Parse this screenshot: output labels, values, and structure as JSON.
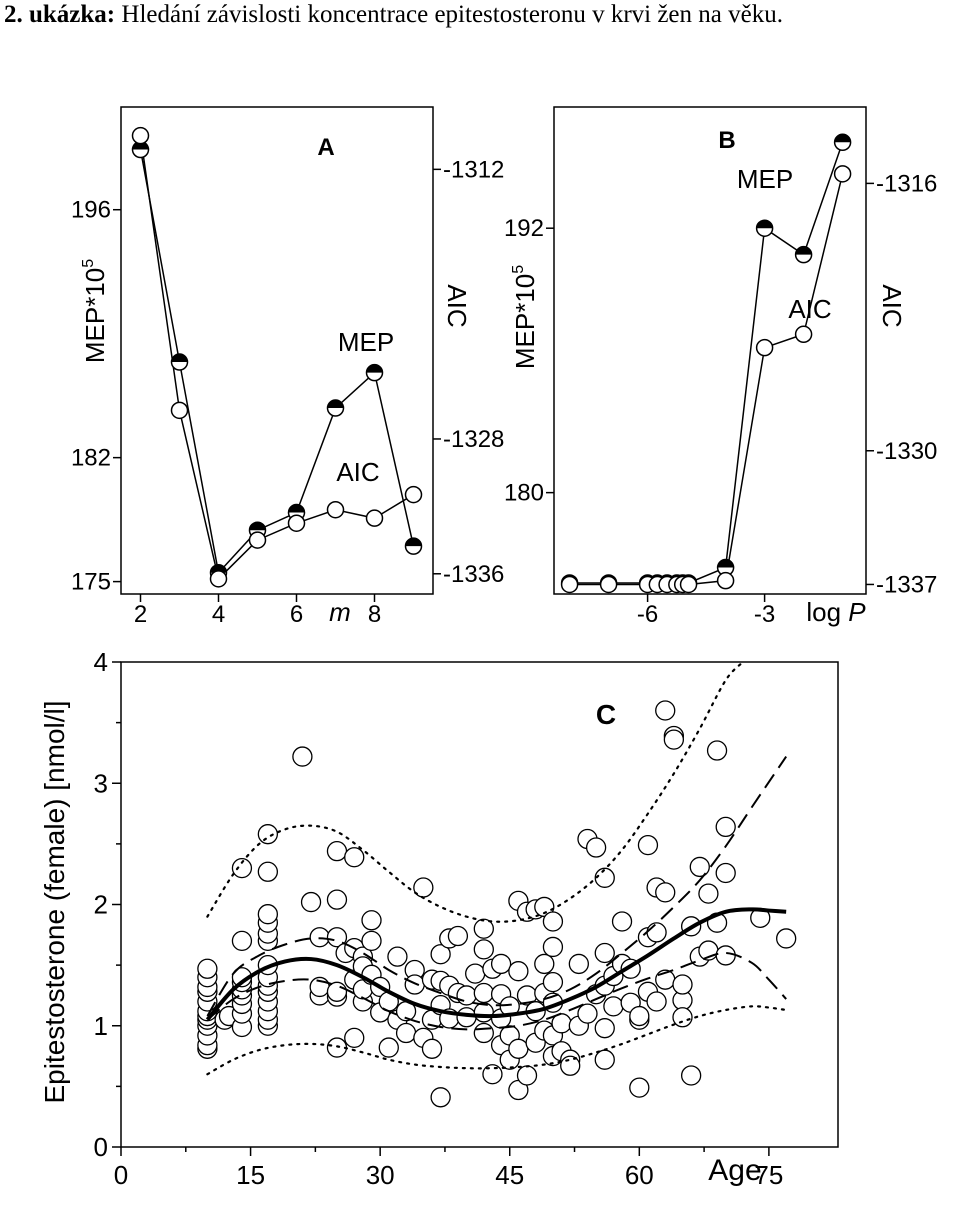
{
  "header": {
    "number": "2. ukázka:",
    "text": "Hledání závislosti koncentrace epitestosteronu v krvi žen na věku."
  },
  "colors": {
    "ink": "#000000",
    "background": "#ffffff",
    "marker_fill": "#ffffff"
  },
  "chart_data": [
    {
      "panel": "A",
      "type": "line",
      "title": "A",
      "xlabel_prefix": "",
      "xlabel": "m",
      "ylabel": "MEP*10",
      "ylabel_exponent": "5",
      "y2label": "AIC",
      "x_ticks": [
        2,
        4,
        6,
        8
      ],
      "x_tick_labels": [
        "2",
        "4",
        "6",
        "8"
      ],
      "y_ticks": [
        175,
        182,
        196
      ],
      "y_tick_labels": [
        "175",
        "182",
        "196"
      ],
      "y2_ticks": [
        -1312,
        -1328,
        -1336
      ],
      "y2_tick_labels": [
        "-1312",
        "-1328",
        "-1336"
      ],
      "xlim": [
        1.5,
        9.5
      ],
      "ylim": [
        174.3,
        201.8
      ],
      "y2lim": [
        -1337.2,
        -1308.3
      ],
      "series": [
        {
          "name": "MEP",
          "marker": "half-filled circle",
          "x": [
            2,
            3,
            4,
            5,
            6,
            7,
            8,
            9
          ],
          "y": [
            199.4,
            187.4,
            175.5,
            177.9,
            178.9,
            184.8,
            186.8,
            177.0
          ]
        },
        {
          "name": "AIC",
          "marker": "open circle",
          "axis": "right",
          "x": [
            2,
            3,
            4,
            5,
            6,
            7,
            8,
            9
          ],
          "y": [
            -1310.0,
            -1326.3,
            -1336.3,
            -1334.0,
            -1333.0,
            -1332.2,
            -1332.7,
            -1331.3
          ]
        }
      ],
      "annotations": [
        "MEP",
        "AIC"
      ]
    },
    {
      "panel": "B",
      "type": "line",
      "title": "B",
      "xlabel_prefix": "log ",
      "xlabel": "P",
      "ylabel": "MEP*10",
      "ylabel_exponent": "5",
      "y2label": "AIC",
      "x_ticks": [
        -6,
        -3
      ],
      "x_tick_labels": [
        "-6",
        "-3"
      ],
      "y_ticks": [
        180,
        192
      ],
      "y_tick_labels": [
        "180",
        "192"
      ],
      "y2_ticks": [
        -1316,
        -1330,
        -1337
      ],
      "y2_tick_labels": [
        "-1316",
        "-1330",
        "-1337"
      ],
      "xlim": [
        -8.4,
        -0.4
      ],
      "ylim": [
        175.4,
        197.5
      ],
      "y2lim": [
        -1337.5,
        -1312.0
      ],
      "series": [
        {
          "name": "MEP",
          "marker": "half-filled circle",
          "x": [
            -8,
            -7,
            -6,
            -5.75,
            -5.5,
            -5.25,
            -5.1,
            -4.95,
            -4,
            -3,
            -2,
            -1
          ],
          "y": [
            175.9,
            175.9,
            175.9,
            175.9,
            175.9,
            175.9,
            175.9,
            175.9,
            176.6,
            192.0,
            190.8,
            195.9
          ]
        },
        {
          "name": "AIC",
          "marker": "open circle",
          "axis": "right",
          "x": [
            -8,
            -7,
            -6,
            -5.75,
            -5.5,
            -5.25,
            -5.1,
            -4.95,
            -4,
            -3,
            -2,
            -1
          ],
          "y": [
            -1337.0,
            -1337.0,
            -1337.0,
            -1337.0,
            -1337.0,
            -1337.0,
            -1337.0,
            -1337.0,
            -1336.8,
            -1324.6,
            -1323.9,
            -1315.5
          ]
        }
      ],
      "annotations": [
        "MEP",
        "AIC"
      ]
    },
    {
      "panel": "C",
      "type": "scatter",
      "title": "C",
      "xlabel": "Age",
      "ylabel": "Epitestosterone (female) [nmol/l]",
      "x_ticks": [
        0,
        15,
        30,
        45,
        60,
        75
      ],
      "x_tick_labels": [
        "0",
        "15",
        "30",
        "45",
        "60",
        "75"
      ],
      "y_ticks": [
        0,
        1,
        2,
        3,
        4
      ],
      "y_tick_labels": [
        "0",
        "1",
        "2",
        "3",
        "4"
      ],
      "xlim": [
        0,
        83
      ],
      "ylim": [
        0,
        4
      ],
      "points": [
        [
          10,
          0.81
        ],
        [
          10,
          0.84
        ],
        [
          10,
          0.92
        ],
        [
          10,
          1.0
        ],
        [
          10,
          1.05
        ],
        [
          10,
          1.08
        ],
        [
          10,
          1.12
        ],
        [
          10,
          1.2
        ],
        [
          10,
          1.28
        ],
        [
          10,
          1.32
        ],
        [
          10,
          1.4
        ],
        [
          10,
          1.47
        ],
        [
          12,
          1.05
        ],
        [
          12.5,
          1.08
        ],
        [
          14,
          0.99
        ],
        [
          14,
          1.1
        ],
        [
          14,
          1.18
        ],
        [
          14,
          1.25
        ],
        [
          14,
          1.3
        ],
        [
          14,
          1.36
        ],
        [
          14,
          1.4
        ],
        [
          14,
          1.7
        ],
        [
          14,
          2.3
        ],
        [
          17,
          1.0
        ],
        [
          17,
          1.05
        ],
        [
          17,
          1.12
        ],
        [
          17,
          1.2
        ],
        [
          17,
          1.28
        ],
        [
          17,
          1.33
        ],
        [
          17,
          1.4
        ],
        [
          17,
          1.5
        ],
        [
          17,
          1.7
        ],
        [
          17,
          1.76
        ],
        [
          17,
          1.85
        ],
        [
          17,
          1.92
        ],
        [
          17,
          2.27
        ],
        [
          17,
          2.58
        ],
        [
          21,
          3.22
        ],
        [
          22,
          2.02
        ],
        [
          23,
          1.73
        ],
        [
          23,
          1.25
        ],
        [
          23,
          1.32
        ],
        [
          25,
          1.73
        ],
        [
          25,
          1.24
        ],
        [
          25,
          1.28
        ],
        [
          25,
          0.82
        ],
        [
          25,
          2.04
        ],
        [
          25,
          2.44
        ],
        [
          26,
          1.6
        ],
        [
          27,
          1.38
        ],
        [
          27,
          1.64
        ],
        [
          27,
          0.9
        ],
        [
          27,
          2.39
        ],
        [
          28,
          1.57
        ],
        [
          28,
          1.49
        ],
        [
          28,
          1.2
        ],
        [
          28,
          1.3
        ],
        [
          29,
          1.7
        ],
        [
          29,
          1.87
        ],
        [
          29,
          1.42
        ],
        [
          30,
          1.32
        ],
        [
          30,
          1.11
        ],
        [
          31,
          1.2
        ],
        [
          31,
          0.82
        ],
        [
          32,
          1.57
        ],
        [
          32,
          1.05
        ],
        [
          33,
          0.94
        ],
        [
          33,
          1.12
        ],
        [
          34,
          1.46
        ],
        [
          34,
          1.34
        ],
        [
          35,
          2.14
        ],
        [
          35,
          0.9
        ],
        [
          36,
          0.81
        ],
        [
          36,
          1.38
        ],
        [
          36,
          1.05
        ],
        [
          37,
          0.41
        ],
        [
          37,
          1.59
        ],
        [
          37,
          1.37
        ],
        [
          37,
          1.17
        ],
        [
          38,
          1.72
        ],
        [
          38,
          1.33
        ],
        [
          38,
          1.06
        ],
        [
          39,
          1.74
        ],
        [
          39,
          1.27
        ],
        [
          40,
          1.07
        ],
        [
          40,
          1.25
        ],
        [
          41,
          1.43
        ],
        [
          42,
          1.8
        ],
        [
          42,
          1.63
        ],
        [
          42,
          1.27
        ],
        [
          42,
          1.11
        ],
        [
          42,
          0.94
        ],
        [
          43,
          1.47
        ],
        [
          43,
          0.6
        ],
        [
          44,
          1.26
        ],
        [
          44,
          1.06
        ],
        [
          44,
          0.84
        ],
        [
          44,
          1.51
        ],
        [
          45,
          0.72
        ],
        [
          45,
          0.92
        ],
        [
          45,
          1.16
        ],
        [
          46,
          0.47
        ],
        [
          46,
          0.81
        ],
        [
          46,
          1.45
        ],
        [
          46,
          2.03
        ],
        [
          47,
          1.94
        ],
        [
          47,
          0.59
        ],
        [
          47,
          1.25
        ],
        [
          48,
          1.96
        ],
        [
          48,
          1.12
        ],
        [
          48,
          0.86
        ],
        [
          49,
          1.51
        ],
        [
          49,
          1.27
        ],
        [
          49,
          0.96
        ],
        [
          49,
          1.98
        ],
        [
          50,
          1.86
        ],
        [
          50,
          1.65
        ],
        [
          50,
          1.36
        ],
        [
          50,
          1.19
        ],
        [
          50,
          0.75
        ],
        [
          50,
          0.92
        ],
        [
          51,
          0.79
        ],
        [
          51,
          1.02
        ],
        [
          52,
          0.72
        ],
        [
          52,
          0.67
        ],
        [
          53,
          1.0
        ],
        [
          53,
          1.51
        ],
        [
          54,
          2.54
        ],
        [
          54,
          1.1
        ],
        [
          55,
          2.47
        ],
        [
          55,
          1.26
        ],
        [
          56,
          2.22
        ],
        [
          56,
          1.6
        ],
        [
          56,
          1.33
        ],
        [
          56,
          0.98
        ],
        [
          56,
          0.72
        ],
        [
          57,
          1.41
        ],
        [
          57,
          1.16
        ],
        [
          58,
          1.86
        ],
        [
          58,
          1.51
        ],
        [
          59,
          1.47
        ],
        [
          59,
          1.19
        ],
        [
          60,
          1.05
        ],
        [
          60,
          1.08
        ],
        [
          60,
          0.49
        ],
        [
          61,
          1.73
        ],
        [
          61,
          1.28
        ],
        [
          61,
          2.49
        ],
        [
          62,
          1.2
        ],
        [
          62,
          1.77
        ],
        [
          62,
          2.14
        ],
        [
          63,
          3.6
        ],
        [
          63,
          2.1
        ],
        [
          63,
          1.38
        ],
        [
          64,
          3.39
        ],
        [
          64,
          3.36
        ],
        [
          65,
          1.21
        ],
        [
          65,
          1.07
        ],
        [
          65,
          1.34
        ],
        [
          66,
          0.59
        ],
        [
          66,
          1.82
        ],
        [
          67,
          2.31
        ],
        [
          67,
          1.57
        ],
        [
          68,
          1.62
        ],
        [
          68,
          2.09
        ],
        [
          69,
          3.27
        ],
        [
          69,
          1.85
        ],
        [
          70,
          2.64
        ],
        [
          70,
          2.26
        ],
        [
          70,
          1.58
        ],
        [
          74,
          1.89
        ],
        [
          77,
          1.72
        ]
      ],
      "lines": [
        {
          "name": "",
          "style": "solid",
          "x": [
            10,
            13,
            16,
            19,
            22,
            25,
            28,
            31,
            34,
            37,
            40,
            43,
            46,
            49,
            52,
            55,
            58,
            61,
            64,
            67,
            70,
            73,
            75,
            77
          ],
          "y": [
            1.05,
            1.3,
            1.45,
            1.53,
            1.55,
            1.5,
            1.4,
            1.28,
            1.18,
            1.12,
            1.09,
            1.08,
            1.1,
            1.14,
            1.22,
            1.32,
            1.45,
            1.58,
            1.72,
            1.85,
            1.94,
            1.96,
            1.95,
            1.94
          ]
        },
        {
          "name": "",
          "style": "dashed",
          "x": [
            10,
            13,
            16,
            19,
            22,
            25,
            28,
            31,
            34,
            37,
            40,
            43,
            46,
            49,
            52,
            55,
            58,
            61,
            64,
            67,
            70,
            73,
            77
          ],
          "y": [
            1.08,
            1.43,
            1.58,
            1.67,
            1.72,
            1.7,
            1.6,
            1.46,
            1.35,
            1.27,
            1.2,
            1.17,
            1.18,
            1.22,
            1.3,
            1.43,
            1.6,
            1.78,
            1.98,
            2.2,
            2.48,
            2.8,
            3.22
          ]
        },
        {
          "name": "",
          "style": "dashed",
          "x": [
            10,
            13,
            16,
            19,
            22,
            25,
            28,
            31,
            34,
            37,
            40,
            43,
            46,
            49,
            52,
            55,
            58,
            61,
            64,
            67,
            70,
            73,
            75,
            77
          ],
          "y": [
            1.05,
            1.22,
            1.32,
            1.37,
            1.38,
            1.33,
            1.23,
            1.12,
            1.04,
            0.99,
            0.97,
            0.98,
            1.0,
            1.05,
            1.13,
            1.22,
            1.31,
            1.39,
            1.46,
            1.54,
            1.6,
            1.52,
            1.38,
            1.22
          ]
        },
        {
          "name": "",
          "style": "dotted",
          "x": [
            10,
            13,
            16,
            19,
            22,
            25,
            28,
            31,
            34,
            37,
            40,
            43,
            46,
            49,
            52,
            55,
            58,
            61,
            64,
            67,
            70,
            72
          ],
          "y": [
            1.9,
            2.25,
            2.5,
            2.62,
            2.65,
            2.6,
            2.45,
            2.27,
            2.1,
            1.98,
            1.9,
            1.86,
            1.87,
            1.93,
            2.05,
            2.22,
            2.45,
            2.75,
            3.08,
            3.45,
            3.85,
            4.0
          ]
        },
        {
          "name": "",
          "style": "dotted",
          "x": [
            10,
            13,
            16,
            19,
            22,
            25,
            28,
            31,
            34,
            37,
            40,
            43,
            46,
            49,
            52,
            55,
            58,
            61,
            64,
            67,
            70,
            73,
            75,
            77
          ],
          "y": [
            0.6,
            0.72,
            0.8,
            0.84,
            0.85,
            0.83,
            0.78,
            0.72,
            0.68,
            0.66,
            0.65,
            0.65,
            0.66,
            0.68,
            0.72,
            0.78,
            0.85,
            0.93,
            1.01,
            1.08,
            1.13,
            1.16,
            1.15,
            1.13
          ]
        }
      ]
    }
  ]
}
